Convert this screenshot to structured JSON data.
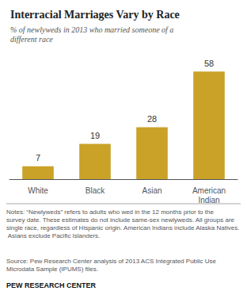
{
  "chart_data": {
    "type": "bar",
    "title": "Interracial Marriages Vary by Race",
    "subtitle": "% of newlyweds in 2013 who married someone of a\ndifferent race",
    "categories": [
      "White",
      "Black",
      "Asian",
      "American\nIndian"
    ],
    "values": [
      7,
      19,
      28,
      58
    ],
    "color": "#C9A227",
    "ylim": [
      0,
      65
    ],
    "grid": false,
    "data_labels": true,
    "tick_labels": "x",
    "notes": "Notes: “Newlyweds” refers to adults who wed in the 12 months prior to the survey date. These estimates do not include same-sex newlyweds. All groups are single race, regardless of Hispanic origin. American Indians include Alaska Natives. Asians exclude Pacific Islanders.",
    "source": "Source: Pew Research Center analysis of 2013 ACS Integrated Public Use Microdata Sample (IPUMS) files.",
    "footer": "PEW RESEARCH CENTER"
  }
}
